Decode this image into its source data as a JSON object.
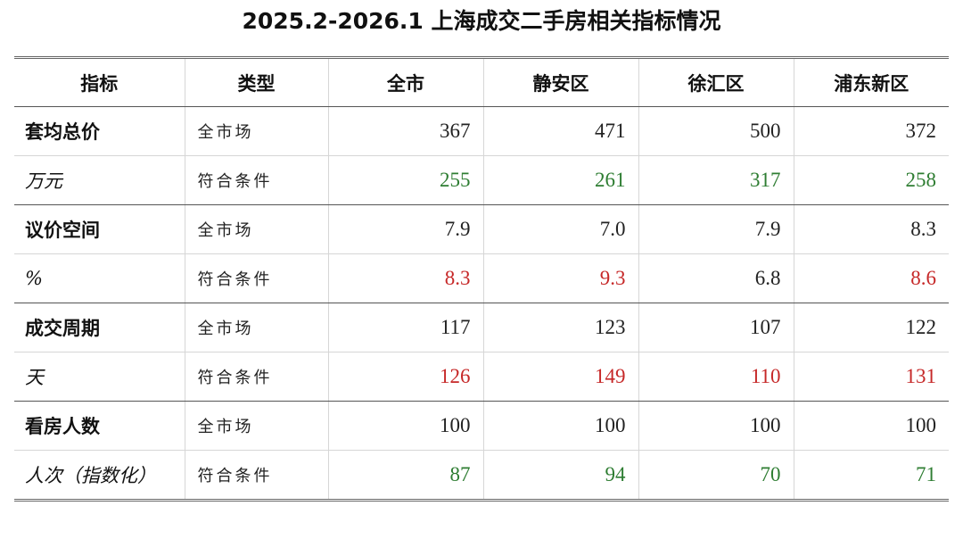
{
  "title": "2025.2-2026.1 上海成交二手房相关指标情况",
  "colors": {
    "green": "#2e7d32",
    "red": "#c62828",
    "black": "#222222"
  },
  "chart_data": {
    "type": "table",
    "title": "2025.2-2026.1 上海成交二手房相关指标情况",
    "headers": [
      "指标",
      "类型",
      "全市",
      "静安区",
      "徐汇区",
      "浦东新区"
    ],
    "columns": [
      "全市",
      "静安区",
      "徐汇区",
      "浦东新区"
    ],
    "groups": [
      {
        "indicator": "套均总价",
        "unit": "万元",
        "rows": [
          {
            "type": "全市场",
            "values": [
              "367",
              "471",
              "500",
              "372"
            ],
            "colors": [
              "black",
              "black",
              "black",
              "black"
            ]
          },
          {
            "type": "符合条件",
            "values": [
              "255",
              "261",
              "317",
              "258"
            ],
            "colors": [
              "green",
              "green",
              "green",
              "green"
            ]
          }
        ]
      },
      {
        "indicator": "议价空间",
        "unit": "%",
        "rows": [
          {
            "type": "全市场",
            "values": [
              "7.9",
              "7.0",
              "7.9",
              "8.3"
            ],
            "colors": [
              "black",
              "black",
              "black",
              "black"
            ]
          },
          {
            "type": "符合条件",
            "values": [
              "8.3",
              "9.3",
              "6.8",
              "8.6"
            ],
            "colors": [
              "red",
              "red",
              "black",
              "red"
            ]
          }
        ]
      },
      {
        "indicator": "成交周期",
        "unit": "天",
        "rows": [
          {
            "type": "全市场",
            "values": [
              "117",
              "123",
              "107",
              "122"
            ],
            "colors": [
              "black",
              "black",
              "black",
              "black"
            ]
          },
          {
            "type": "符合条件",
            "values": [
              "126",
              "149",
              "110",
              "131"
            ],
            "colors": [
              "red",
              "red",
              "red",
              "red"
            ]
          }
        ]
      },
      {
        "indicator": "看房人数",
        "unit": "人次（指数化）",
        "rows": [
          {
            "type": "全市场",
            "values": [
              "100",
              "100",
              "100",
              "100"
            ],
            "colors": [
              "black",
              "black",
              "black",
              "black"
            ]
          },
          {
            "type": "符合条件",
            "values": [
              "87",
              "94",
              "70",
              "71"
            ],
            "colors": [
              "green",
              "green",
              "green",
              "green"
            ]
          }
        ]
      }
    ]
  }
}
